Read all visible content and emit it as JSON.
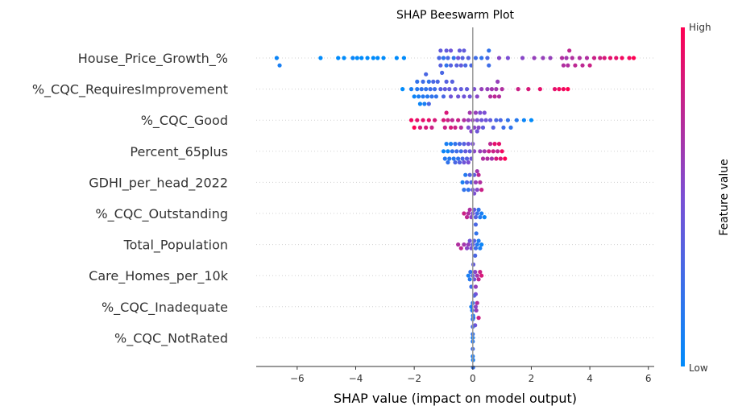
{
  "chart_data": {
    "type": "scatter",
    "subtype": "beeswarm",
    "title": "SHAP Beeswarm Plot",
    "xlabel": "SHAP value (impact on model output)",
    "xlim": [
      -7.4,
      6.2
    ],
    "xticks": [
      -6,
      -4,
      -2,
      0,
      2,
      4,
      6
    ],
    "xtick_labels": [
      "−6",
      "−4",
      "−2",
      "0",
      "2",
      "4",
      "6"
    ],
    "colorbar": {
      "label": "Feature value",
      "high": "High",
      "low": "Low"
    },
    "colors": {
      "low": "#008bfb",
      "mid": "#7b4fd4",
      "high": "#ff0052",
      "zero_line": "#999999",
      "axis": "#333333",
      "row_grid": "#d0d0d0"
    },
    "features": [
      {
        "name": "House_Price_Growth_%",
        "points": [
          [
            -6.7,
            0.05
          ],
          [
            -6.6,
            0.1
          ],
          [
            -5.2,
            0
          ],
          [
            -4.6,
            0
          ],
          [
            -4.4,
            0
          ],
          [
            -4.1,
            0.05
          ],
          [
            -3.95,
            0
          ],
          [
            -3.8,
            0
          ],
          [
            -3.6,
            0
          ],
          [
            -3.4,
            0
          ],
          [
            -3.25,
            0
          ],
          [
            -3.05,
            0
          ],
          [
            -2.6,
            0
          ],
          [
            -2.35,
            0
          ],
          [
            -1.15,
            0.3
          ],
          [
            -1.1,
            0.35
          ],
          [
            -1.05,
            0.3
          ],
          [
            -1.0,
            0.2
          ],
          [
            -0.9,
            0.2
          ],
          [
            -0.85,
            0.3
          ],
          [
            -0.75,
            0.35
          ],
          [
            -0.65,
            0.2
          ],
          [
            -0.55,
            0.35
          ],
          [
            -0.45,
            0.4
          ],
          [
            -0.35,
            0.35
          ],
          [
            -0.25,
            0.3
          ],
          [
            -0.15,
            0.35
          ],
          [
            -0.05,
            0.3
          ],
          [
            0.1,
            0.25
          ],
          [
            0.3,
            0.2
          ],
          [
            -1.1,
            0.4
          ],
          [
            -0.9,
            0.4
          ],
          [
            -0.75,
            0.45
          ],
          [
            -0.5,
            0.45
          ],
          [
            -0.4,
            0.4
          ],
          [
            -0.3,
            0.4
          ],
          [
            0.5,
            0.3
          ],
          [
            0.55,
            0.25
          ],
          [
            0.55,
            0.2
          ],
          [
            1.2,
            0.5
          ],
          [
            1.7,
            0.55
          ],
          [
            2.1,
            0.6
          ],
          [
            2.4,
            0.6
          ],
          [
            2.65,
            0.6
          ],
          [
            3.1,
            0.7
          ],
          [
            3.25,
            0.7
          ],
          [
            3.4,
            0.7
          ],
          [
            3.3,
            0.75
          ],
          [
            3.5,
            0.75
          ],
          [
            3.65,
            0.7
          ],
          [
            3.75,
            0.75
          ],
          [
            3.9,
            0.7
          ],
          [
            4.0,
            0.8
          ],
          [
            4.15,
            0.8
          ],
          [
            4.35,
            0.8
          ],
          [
            4.5,
            0.85
          ],
          [
            4.7,
            0.9
          ],
          [
            4.9,
            0.9
          ],
          [
            5.1,
            0.95
          ],
          [
            5.35,
            0.95
          ],
          [
            5.5,
            1.0
          ],
          [
            3.05,
            0.7
          ],
          [
            3.2,
            0.65
          ],
          [
            0.9,
            0.55
          ]
        ]
      },
      {
        "name": "%_CQC_RequiresImprovement",
        "points": [
          [
            -2.4,
            0
          ],
          [
            -2.1,
            0.1
          ],
          [
            -2.0,
            0.05
          ],
          [
            -1.9,
            0.15
          ],
          [
            -1.85,
            0.1
          ],
          [
            -1.8,
            0.05
          ],
          [
            -1.75,
            0.2
          ],
          [
            -1.7,
            0.15
          ],
          [
            -1.65,
            0.1
          ],
          [
            -1.6,
            0.2
          ],
          [
            -1.55,
            0.15
          ],
          [
            -1.5,
            0.2
          ],
          [
            -1.45,
            0.25
          ],
          [
            -1.4,
            0.2
          ],
          [
            -1.35,
            0.3
          ],
          [
            -1.25,
            0.2
          ],
          [
            -1.2,
            0.3
          ],
          [
            -1.1,
            0.35
          ],
          [
            -1.0,
            0.3
          ],
          [
            -0.9,
            0.35
          ],
          [
            -0.8,
            0.4
          ],
          [
            -0.7,
            0.35
          ],
          [
            -0.6,
            0.4
          ],
          [
            -0.5,
            0.45
          ],
          [
            -0.4,
            0.4
          ],
          [
            -0.3,
            0.45
          ],
          [
            -0.2,
            0.4
          ],
          [
            -0.1,
            0.45
          ],
          [
            -1.9,
            0.2
          ],
          [
            -1.7,
            0.25
          ],
          [
            -1.5,
            0.3
          ],
          [
            -1.3,
            0.25
          ],
          [
            -1.6,
            0.3
          ],
          [
            -0.95,
            0.4
          ],
          [
            -0.75,
            0.45
          ],
          [
            0.05,
            0.5
          ],
          [
            0.15,
            0.55
          ],
          [
            0.3,
            0.6
          ],
          [
            0.5,
            0.6
          ],
          [
            0.65,
            0.65
          ],
          [
            0.8,
            0.65
          ],
          [
            0.9,
            0.7
          ],
          [
            1.0,
            0.7
          ],
          [
            0.6,
            0.7
          ],
          [
            0.75,
            0.75
          ],
          [
            0.85,
            0.6
          ],
          [
            1.55,
            0.8
          ],
          [
            1.9,
            0.85
          ],
          [
            2.3,
            0.9
          ],
          [
            2.8,
            0.9
          ],
          [
            2.95,
            0.95
          ],
          [
            3.1,
            0.95
          ],
          [
            3.25,
            1.0
          ]
        ]
      },
      {
        "name": "%_CQC_Good",
        "points": [
          [
            -2.1,
            0.95
          ],
          [
            -2.0,
            1.0
          ],
          [
            -1.9,
            0.9
          ],
          [
            -1.8,
            0.85
          ],
          [
            -1.7,
            0.9
          ],
          [
            -1.6,
            0.85
          ],
          [
            -1.5,
            0.9
          ],
          [
            -1.4,
            0.8
          ],
          [
            -1.3,
            0.85
          ],
          [
            -1.0,
            0.85
          ],
          [
            -0.95,
            0.8
          ],
          [
            -0.9,
            0.85
          ],
          [
            -0.85,
            0.8
          ],
          [
            -0.75,
            0.85
          ],
          [
            -0.7,
            0.75
          ],
          [
            -0.6,
            0.8
          ],
          [
            -0.5,
            0.8
          ],
          [
            -0.4,
            0.7
          ],
          [
            -0.3,
            0.7
          ],
          [
            -0.15,
            0.6
          ],
          [
            -0.05,
            0.55
          ],
          [
            0.05,
            0.55
          ],
          [
            0.15,
            0.5
          ],
          [
            0.25,
            0.5
          ],
          [
            0.3,
            0.45
          ],
          [
            0.4,
            0.5
          ],
          [
            0.45,
            0.45
          ],
          [
            0.6,
            0.4
          ],
          [
            0.7,
            0.35
          ],
          [
            0.8,
            0.3
          ],
          [
            0.95,
            0.3
          ],
          [
            1.05,
            0.25
          ],
          [
            1.2,
            0.2
          ],
          [
            1.3,
            0.2
          ],
          [
            1.5,
            0.15
          ],
          [
            1.75,
            0.05
          ],
          [
            2.0,
            0
          ],
          [
            -0.1,
            0.65
          ],
          [
            0.0,
            0.6
          ],
          [
            0.1,
            0.6
          ],
          [
            0.2,
            0.55
          ],
          [
            -0.15,
            0.5
          ],
          [
            0.35,
            0.4
          ],
          [
            0.15,
            0.45
          ]
        ]
      },
      {
        "name": "Percent_65plus",
        "points": [
          [
            -1.0,
            0.05
          ],
          [
            -0.9,
            0.1
          ],
          [
            -0.85,
            0.05
          ],
          [
            -0.8,
            0.15
          ],
          [
            -0.75,
            0.1
          ],
          [
            -0.7,
            0.2
          ],
          [
            -0.65,
            0.15
          ],
          [
            -0.6,
            0.2
          ],
          [
            -0.55,
            0.25
          ],
          [
            -0.5,
            0.2
          ],
          [
            -0.45,
            0.3
          ],
          [
            -0.4,
            0.25
          ],
          [
            -0.35,
            0.3
          ],
          [
            -0.3,
            0.35
          ],
          [
            -0.25,
            0.4
          ],
          [
            -0.2,
            0.35
          ],
          [
            -0.15,
            0.45
          ],
          [
            -0.1,
            0.4
          ],
          [
            -0.05,
            0.45
          ],
          [
            0.0,
            0.5
          ],
          [
            -0.95,
            0.15
          ],
          [
            -0.85,
            0.2
          ],
          [
            -0.6,
            0.3
          ],
          [
            -0.45,
            0.35
          ],
          [
            -0.3,
            0.45
          ],
          [
            -0.15,
            0.5
          ],
          [
            0.05,
            0.55
          ],
          [
            0.25,
            0.6
          ],
          [
            0.4,
            0.65
          ],
          [
            0.5,
            0.7
          ],
          [
            0.6,
            0.75
          ],
          [
            0.7,
            0.8
          ],
          [
            0.8,
            0.85
          ],
          [
            0.9,
            0.9
          ],
          [
            1.0,
            0.95
          ],
          [
            1.1,
            1.0
          ],
          [
            0.55,
            0.8
          ],
          [
            0.75,
            0.9
          ],
          [
            0.95,
            0.85
          ],
          [
            0.35,
            0.7
          ],
          [
            0.65,
            0.65
          ],
          [
            0.85,
            0.75
          ]
        ]
      },
      {
        "name": "GDHI_per_head_2022",
        "points": [
          [
            -0.35,
            0.1
          ],
          [
            -0.25,
            0.15
          ],
          [
            -0.15,
            0.2
          ],
          [
            -0.05,
            0.3
          ],
          [
            0.05,
            0.4
          ],
          [
            0.15,
            0.55
          ],
          [
            0.25,
            0.7
          ],
          [
            0.3,
            0.8
          ],
          [
            -0.2,
            0.3
          ],
          [
            0.1,
            0.6
          ],
          [
            0.2,
            0.75
          ],
          [
            0.0,
            0.45
          ],
          [
            -0.1,
            0.35
          ],
          [
            0.05,
            0.5
          ],
          [
            0.15,
            0.65
          ],
          [
            -0.3,
            0.2
          ]
        ]
      },
      {
        "name": "%_CQC_Outstanding",
        "points": [
          [
            -0.3,
            0.8
          ],
          [
            -0.2,
            0.75
          ],
          [
            -0.1,
            0.7
          ],
          [
            0.0,
            0.5
          ],
          [
            0.1,
            0.35
          ],
          [
            0.2,
            0.2
          ],
          [
            0.3,
            0.1
          ],
          [
            0.4,
            0.05
          ],
          [
            -0.15,
            0.7
          ],
          [
            0.05,
            0.4
          ],
          [
            0.15,
            0.25
          ],
          [
            -0.05,
            0.55
          ],
          [
            0.1,
            0.3
          ],
          [
            0.25,
            0.15
          ]
        ]
      },
      {
        "name": "Total_Population",
        "points": [
          [
            -0.5,
            0.7
          ],
          [
            -0.4,
            0.75
          ],
          [
            -0.3,
            0.65
          ],
          [
            -0.15,
            0.6
          ],
          [
            -0.05,
            0.5
          ],
          [
            0.05,
            0.35
          ],
          [
            0.1,
            0.25
          ],
          [
            0.15,
            0.15
          ],
          [
            0.25,
            0.1
          ],
          [
            0.3,
            0.05
          ],
          [
            -0.2,
            0.55
          ],
          [
            0.0,
            0.4
          ],
          [
            0.12,
            0.2
          ],
          [
            -0.1,
            0.45
          ],
          [
            0.2,
            0.12
          ],
          [
            0.08,
            0.3
          ]
        ]
      },
      {
        "name": "Care_Homes_per_10k",
        "points": [
          [
            -0.15,
            0.1
          ],
          [
            -0.1,
            0.15
          ],
          [
            -0.05,
            0.25
          ],
          [
            0.0,
            0.35
          ],
          [
            0.05,
            0.45
          ],
          [
            0.1,
            0.6
          ],
          [
            0.2,
            0.75
          ],
          [
            0.3,
            0.85
          ],
          [
            0.1,
            0.5
          ],
          [
            0.15,
            0.65
          ],
          [
            -0.08,
            0.2
          ],
          [
            0.02,
            0.4
          ],
          [
            0.25,
            0.8
          ],
          [
            0.08,
            0.55
          ]
        ]
      },
      {
        "name": "%_CQC_Inadequate",
        "points": [
          [
            -0.05,
            0.1
          ],
          [
            0.0,
            0.2
          ],
          [
            0.05,
            0.35
          ],
          [
            0.1,
            0.55
          ],
          [
            0.15,
            0.7
          ],
          [
            0.2,
            0.8
          ],
          [
            0.02,
            0.25
          ],
          [
            0.08,
            0.45
          ],
          [
            0.12,
            0.6
          ],
          [
            -0.02,
            0.15
          ]
        ]
      },
      {
        "name": "%_CQC_NotRated",
        "points": [
          [
            0.0,
            0.1
          ],
          [
            0.0,
            0.15
          ],
          [
            0.0,
            0.2
          ],
          [
            0.01,
            0.1
          ],
          [
            0.0,
            0.25
          ],
          [
            0.01,
            0.15
          ],
          [
            0.0,
            0.3
          ],
          [
            0.0,
            0.12
          ],
          [
            0.01,
            0.2
          ],
          [
            0.0,
            0.18
          ]
        ]
      }
    ]
  }
}
